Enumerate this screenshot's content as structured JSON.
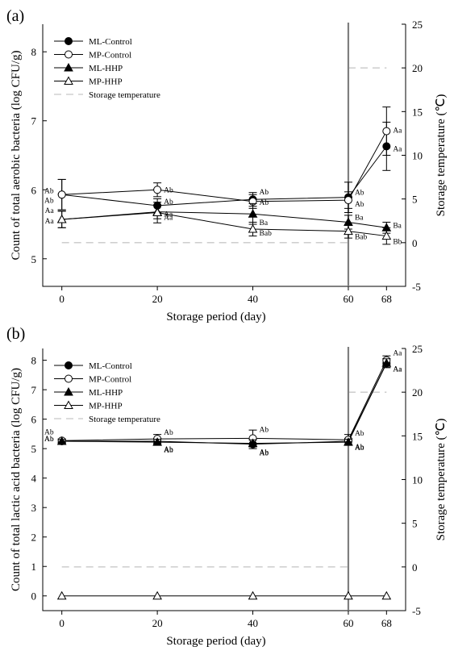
{
  "colors": {
    "series": "#000000",
    "temperature_line": "#c8c8c8",
    "divider_line": "#7f7f7f",
    "hollow_fill": "#ffffff"
  },
  "chart_data": [
    {
      "type": "line",
      "panel_label": "(a)",
      "xlabel": "Storage period (day)",
      "ylabel": "Count of total aerobic bacteria (log CFU/g)",
      "y2label": "Storage temperature (℃)",
      "x": [
        0,
        20,
        40,
        60,
        68
      ],
      "x_ticks": [
        "0",
        "20",
        "40",
        "60",
        "68"
      ],
      "xlim": [
        -4,
        72
      ],
      "ylim": [
        4.6,
        8.4
      ],
      "y_ticks": [
        5,
        6,
        7,
        8
      ],
      "y2lim": [
        -5,
        25
      ],
      "y2_ticks": [
        -5,
        0,
        5,
        10,
        15,
        20,
        25
      ],
      "grid": false,
      "legend_position": "top-left",
      "series": [
        {
          "name": "ML-Control",
          "marker": "filled-circle",
          "values": [
            5.93,
            5.77,
            5.86,
            5.89,
            6.63
          ],
          "errors": [
            0.22,
            0.1,
            0.1,
            0.22,
            0.35
          ],
          "labels": [
            "Ab",
            "Ab",
            "Ab",
            "Ab",
            "Aa"
          ]
        },
        {
          "name": "MP-Control",
          "marker": "hollow-circle",
          "values": [
            5.93,
            6.0,
            5.83,
            5.85,
            6.85
          ],
          "errors": [
            0.22,
            0.1,
            0.1,
            0.12,
            0.35
          ],
          "labels": [
            "Ab",
            "Ab",
            "Ab",
            "Ab",
            "Aa"
          ]
        },
        {
          "name": "ML-HHP",
          "marker": "filled-triangle",
          "values": [
            5.57,
            5.68,
            5.65,
            5.53,
            5.45
          ],
          "errors": [
            0.12,
            0.1,
            0.15,
            0.1,
            0.08
          ],
          "labels": [
            "Aa",
            "Aa",
            "Ba",
            "Ba",
            "Ba"
          ]
        },
        {
          "name": "MP-HHP",
          "marker": "hollow-triangle",
          "values": [
            5.57,
            5.67,
            5.43,
            5.4,
            5.33
          ],
          "errors": [
            0.12,
            0.15,
            0.1,
            0.1,
            0.12
          ],
          "labels": [
            "Aa",
            "Aa",
            "Bab",
            "Bab",
            "Bb"
          ]
        }
      ],
      "temperature": {
        "name": "Storage temperature",
        "segments": [
          {
            "x": [
              0,
              60
            ],
            "y": [
              0,
              0
            ]
          },
          {
            "x": [
              60,
              68
            ],
            "y": [
              20,
              20
            ]
          }
        ]
      },
      "divider_x": 60
    },
    {
      "type": "line",
      "panel_label": "(b)",
      "xlabel": "Storage period (day)",
      "ylabel": "Count of total lactic acid bacteria (log CFU/g)",
      "y2label": "Storage temperature (℃)",
      "x": [
        0,
        20,
        40,
        60,
        68
      ],
      "x_ticks": [
        "0",
        "20",
        "40",
        "60",
        "68"
      ],
      "xlim": [
        -4,
        72
      ],
      "ylim": [
        -0.5,
        8.4
      ],
      "y_ticks": [
        0,
        1,
        2,
        3,
        4,
        5,
        6,
        7,
        8
      ],
      "y2lim": [
        -5,
        25
      ],
      "y2_ticks": [
        -5,
        0,
        5,
        10,
        15,
        20,
        25
      ],
      "grid": false,
      "legend_position": "top-left",
      "series": [
        {
          "name": "ML-Control",
          "marker": "filled-circle",
          "values": [
            5.25,
            5.25,
            5.15,
            5.25,
            7.9
          ],
          "errors": [
            0.06,
            0.1,
            0.15,
            0.1,
            0.15
          ],
          "labels": [
            "Ab",
            "Ab",
            "Ab",
            "Ab",
            "Aa"
          ]
        },
        {
          "name": "MP-Control",
          "marker": "hollow-circle",
          "values": [
            5.27,
            5.33,
            5.35,
            5.3,
            8.0
          ],
          "errors": [
            0.06,
            0.15,
            0.28,
            0.18,
            0.15
          ],
          "labels": [
            "Ab",
            "Ab",
            "Ab",
            "Ab",
            "Aa"
          ]
        },
        {
          "name": "ML-HHP",
          "marker": "filled-triangle",
          "values": [
            5.25,
            5.22,
            5.18,
            5.22,
            7.9
          ],
          "errors": [
            0.06,
            0.1,
            0.12,
            0.1,
            0.15
          ],
          "labels": [
            "Ab",
            "Ab",
            "Ab",
            "Ab",
            "Aa"
          ]
        },
        {
          "name": "MP-HHP",
          "marker": "hollow-triangle",
          "values": [
            0,
            0,
            0,
            0,
            0
          ],
          "errors": [
            0,
            0,
            0,
            0,
            0
          ],
          "labels": [
            "",
            "",
            "",
            "",
            ""
          ]
        }
      ],
      "temperature": {
        "name": "Storage temperature",
        "segments": [
          {
            "x": [
              0,
              60
            ],
            "y": [
              0,
              0
            ]
          },
          {
            "x": [
              60,
              68
            ],
            "y": [
              20,
              20
            ]
          }
        ]
      },
      "divider_x": 60
    }
  ]
}
